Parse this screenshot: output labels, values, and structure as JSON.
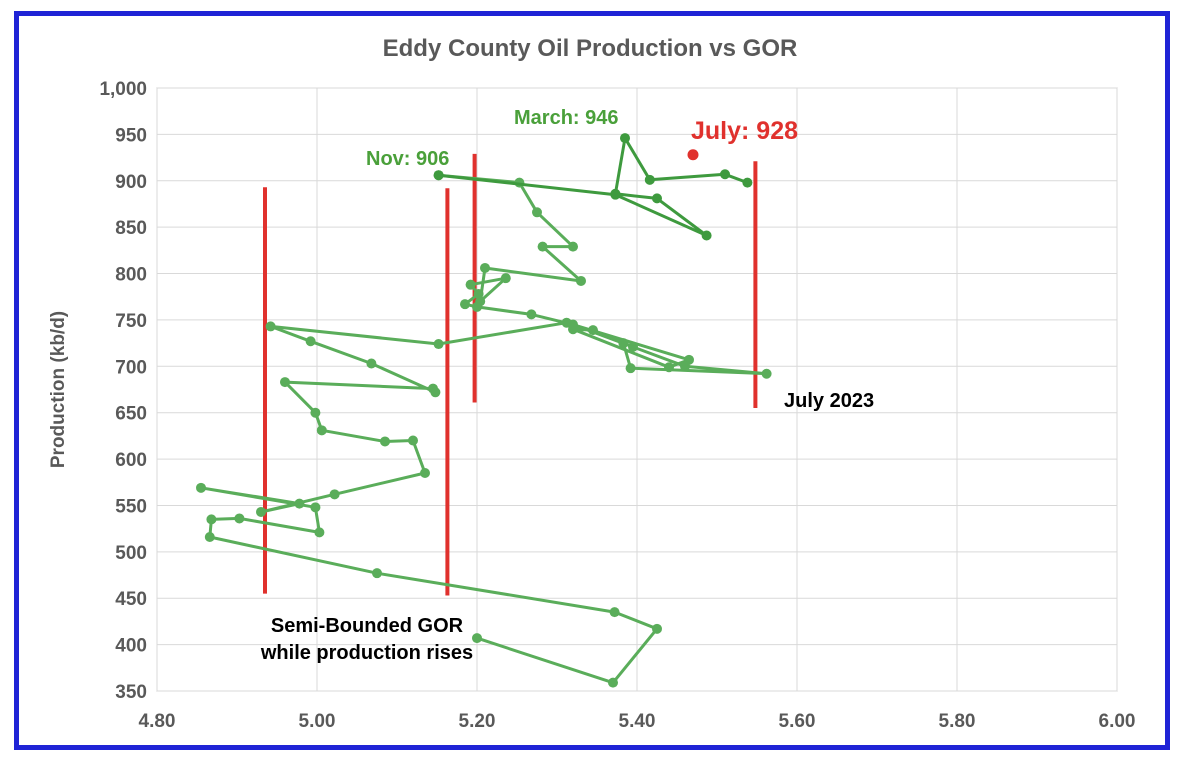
{
  "chart_data": {
    "type": "line",
    "title": "Eddy County Oil Production vs GOR",
    "xlabel": "",
    "ylabel": "Production (kb/d)",
    "xlim": [
      4.8,
      6.0
    ],
    "ylim": [
      350,
      1000
    ],
    "x_ticks": [
      "4.80",
      "5.00",
      "5.20",
      "5.40",
      "5.60",
      "5.80",
      "6.00"
    ],
    "y_ticks": [
      "350",
      "400",
      "450",
      "500",
      "550",
      "600",
      "650",
      "700",
      "750",
      "800",
      "850",
      "900",
      "950",
      "1,000"
    ],
    "grid": true,
    "series": [
      {
        "color": "#5aad5a",
        "points": [
          [
            5.2,
            407
          ],
          [
            5.37,
            359
          ],
          [
            5.425,
            417
          ],
          [
            5.372,
            435
          ],
          [
            5.075,
            477
          ],
          [
            4.866,
            516
          ],
          [
            4.868,
            535
          ],
          [
            4.903,
            536
          ],
          [
            5.003,
            521
          ],
          [
            4.998,
            548
          ],
          [
            4.855,
            569
          ],
          [
            4.978,
            552
          ],
          [
            4.93,
            543
          ],
          [
            5.022,
            562
          ],
          [
            5.135,
            585
          ],
          [
            5.12,
            620
          ],
          [
            5.085,
            619
          ],
          [
            5.006,
            631
          ],
          [
            4.998,
            650
          ],
          [
            4.96,
            683
          ],
          [
            5.145,
            676
          ],
          [
            5.148,
            672
          ],
          [
            5.068,
            703
          ],
          [
            4.992,
            727
          ],
          [
            4.942,
            743
          ],
          [
            5.152,
            724
          ],
          [
            5.312,
            747
          ],
          [
            5.465,
            707
          ],
          [
            5.44,
            699
          ],
          [
            5.32,
            740
          ],
          [
            5.345,
            739
          ],
          [
            5.395,
            721
          ],
          [
            5.383,
            725
          ],
          [
            5.392,
            698
          ],
          [
            5.562,
            692
          ],
          [
            5.46,
            700
          ],
          [
            5.32,
            745
          ],
          [
            5.268,
            756
          ],
          [
            5.2,
            764
          ],
          [
            5.185,
            767
          ],
          [
            5.202,
            778
          ],
          [
            5.192,
            788
          ],
          [
            5.236,
            795
          ],
          [
            5.204,
            770
          ],
          [
            5.21,
            806
          ],
          [
            5.33,
            792
          ],
          [
            5.282,
            829
          ],
          [
            5.32,
            829
          ],
          [
            5.275,
            866
          ],
          [
            5.253,
            898
          ],
          [
            5.152,
            906
          ]
        ]
      },
      {
        "color": "#3e9a3e",
        "points": [
          [
            5.152,
            906
          ],
          [
            5.373,
            885
          ],
          [
            5.487,
            841
          ],
          [
            5.425,
            881
          ],
          [
            5.373,
            886
          ],
          [
            5.385,
            946
          ],
          [
            5.416,
            901
          ],
          [
            5.51,
            907
          ],
          [
            5.538,
            898
          ]
        ]
      }
    ],
    "highlight_point": {
      "x": 5.47,
      "y": 928,
      "color": "#e0312d"
    },
    "reference_lines": [
      {
        "x": 4.935,
        "y_from": 455,
        "y_to": 893
      },
      {
        "x": 5.163,
        "y_from": 453,
        "y_to": 892
      },
      {
        "x": 5.197,
        "y_from": 661,
        "y_to": 929
      },
      {
        "x": 5.548,
        "y_from": 655,
        "y_to": 921
      }
    ],
    "annotations": [
      {
        "text": "March: 946",
        "color": "#4aa03a"
      },
      {
        "text": "Nov: 906",
        "color": "#4aa03a"
      },
      {
        "text": "July: 928",
        "color": "#e0312d"
      },
      {
        "text": "July 2023",
        "color": "#000000"
      },
      {
        "text": "Semi-Bounded GOR",
        "color": "#000000"
      },
      {
        "text": "while production rises",
        "color": "#000000"
      }
    ]
  }
}
